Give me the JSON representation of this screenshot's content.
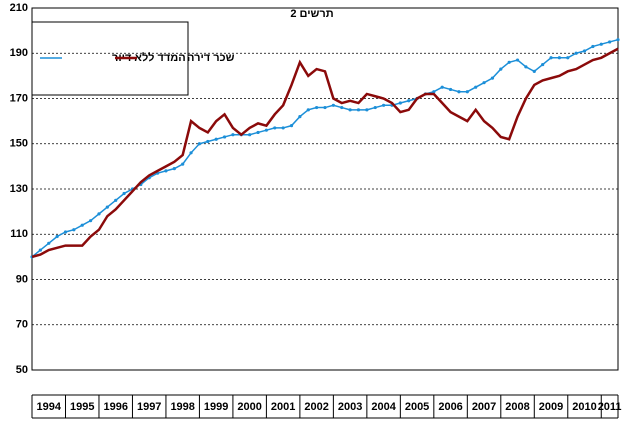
{
  "chart_data": {
    "type": "line",
    "title": "תרשים 2",
    "x": [
      1994,
      1994.25,
      1994.5,
      1994.75,
      1995,
      1995.25,
      1995.5,
      1995.75,
      1996,
      1996.25,
      1996.5,
      1996.75,
      1997,
      1997.25,
      1997.5,
      1997.75,
      1998,
      1998.25,
      1998.5,
      1998.75,
      1999,
      1999.25,
      1999.5,
      1999.75,
      2000,
      2000.25,
      2000.5,
      2000.75,
      2001,
      2001.25,
      2001.5,
      2001.75,
      2002,
      2002.25,
      2002.5,
      2002.75,
      2003,
      2003.25,
      2003.5,
      2003.75,
      2004,
      2004.25,
      2004.5,
      2004.75,
      2005,
      2005.25,
      2005.5,
      2005.75,
      2006,
      2006.25,
      2006.5,
      2006.75,
      2007,
      2007.25,
      2007.5,
      2007.75,
      2008,
      2008.25,
      2008.5,
      2008.75,
      2009,
      2009.25,
      2009.5,
      2009.75,
      2010,
      2010.25,
      2010.5,
      2010.75,
      2011,
      2011.25,
      2011.5
    ],
    "series": [
      {
        "name": "המדד ללא דיור",
        "color": "#1c8fd8",
        "markers": true,
        "values": [
          100,
          103,
          106,
          109,
          111,
          112,
          114,
          116,
          119,
          122,
          125,
          128,
          130,
          132,
          135,
          137,
          138,
          139,
          141,
          146,
          150,
          151,
          152,
          153,
          154,
          154,
          154,
          155,
          156,
          157,
          157,
          158,
          162,
          165,
          166,
          166,
          167,
          166,
          165,
          165,
          165,
          166,
          167,
          167,
          168,
          169,
          170,
          172,
          173,
          175,
          174,
          173,
          173,
          175,
          177,
          179,
          183,
          186,
          187,
          184,
          182,
          185,
          188,
          188,
          188,
          190,
          191,
          193,
          194,
          195,
          196
        ]
      },
      {
        "name": "שכר דירה",
        "color": "#8b0a0a",
        "markers": false,
        "values": [
          100,
          101,
          103,
          104,
          105,
          105,
          105,
          109,
          112,
          118,
          121,
          125,
          129,
          133,
          136,
          138,
          140,
          142,
          145,
          160,
          157,
          155,
          160,
          163,
          157,
          154,
          157,
          159,
          158,
          163,
          167,
          176,
          186,
          180,
          183,
          182,
          170,
          168,
          169,
          168,
          172,
          171,
          170,
          168,
          164,
          165,
          170,
          172,
          172,
          168,
          164,
          162,
          160,
          165,
          160,
          157,
          153,
          152,
          162,
          170,
          176,
          178,
          179,
          180,
          182,
          183,
          185,
          187,
          188,
          190,
          192
        ]
      }
    ],
    "xlim": [
      1994,
      2011.5
    ],
    "xticks": [
      {
        "value": 1994.5,
        "label": "1994"
      },
      {
        "value": 1995.5,
        "label": "1995"
      },
      {
        "value": 1996.5,
        "label": "1996"
      },
      {
        "value": 1997.5,
        "label": "1997"
      },
      {
        "value": 1998.5,
        "label": "1998"
      },
      {
        "value": 1999.5,
        "label": "1999"
      },
      {
        "value": 2000.5,
        "label": "2000"
      },
      {
        "value": 2001.5,
        "label": "2001"
      },
      {
        "value": 2002.5,
        "label": "2002"
      },
      {
        "value": 2003.5,
        "label": "2003"
      },
      {
        "value": 2004.5,
        "label": "2004"
      },
      {
        "value": 2005.5,
        "label": "2005"
      },
      {
        "value": 2006.5,
        "label": "2006"
      },
      {
        "value": 2007.5,
        "label": "2007"
      },
      {
        "value": 2008.5,
        "label": "2008"
      },
      {
        "value": 2009.5,
        "label": "2009"
      },
      {
        "value": 2010.5,
        "label": "2010"
      },
      {
        "value": 2011.25,
        "label": "2011"
      }
    ],
    "ylim": [
      50,
      210
    ],
    "yticks": [
      50,
      70,
      90,
      110,
      130,
      150,
      170,
      190,
      210
    ],
    "grid": true
  }
}
